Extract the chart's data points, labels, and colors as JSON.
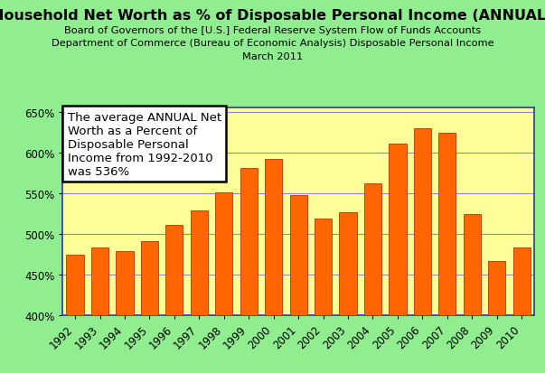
{
  "title": "Household Net Worth as % of Disposable Personal Income (ANNUAL)",
  "subtitle_lines": [
    "Board of Governors of the [U.S.] Federal Reserve System Flow of Funds Accounts",
    "Department of Commerce (Bureau of Economic Analysis) Disposable Personal Income",
    "March 2011"
  ],
  "years": [
    1992,
    1993,
    1994,
    1995,
    1996,
    1997,
    1998,
    1999,
    2000,
    2001,
    2002,
    2003,
    2004,
    2005,
    2006,
    2007,
    2008,
    2009,
    2010
  ],
  "values": [
    474,
    483,
    479,
    491,
    511,
    529,
    551,
    581,
    592,
    547,
    519,
    526,
    562,
    611,
    630,
    624,
    524,
    466,
    483
  ],
  "bar_color": "#FF6600",
  "bar_edge_color": "#BB3300",
  "background_outer": "#90EE90",
  "background_plot": "#FFFF99",
  "grid_color": "#8888CC",
  "spine_color": "#3333AA",
  "ylim_min": 400,
  "ylim_max": 655,
  "yticks": [
    400,
    450,
    500,
    550,
    600,
    650
  ],
  "annotation_text": "The average ANNUAL Net\nWorth as a Percent of\nDisposable Personal\nIncome from 1992-2010\nwas 536%",
  "title_fontsize": 11.5,
  "subtitle_fontsize": 8.2,
  "tick_fontsize": 8.5,
  "annotation_fontsize": 9.5
}
